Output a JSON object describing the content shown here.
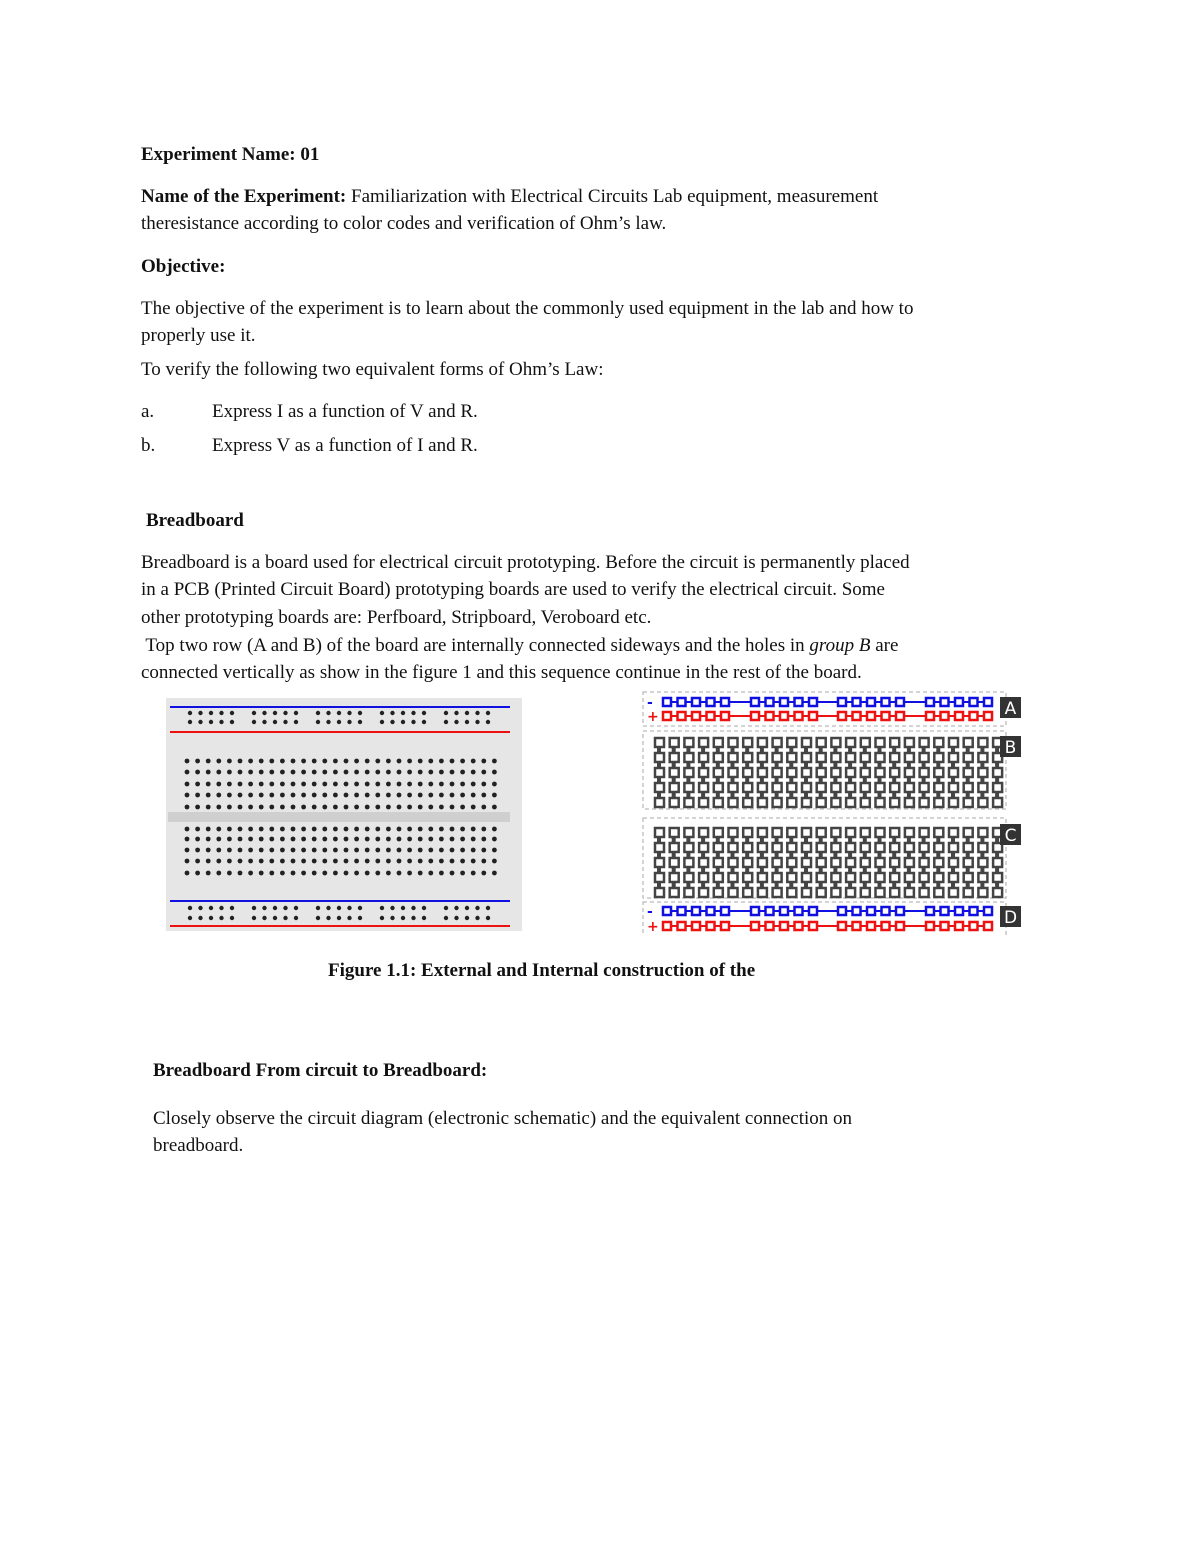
{
  "experiment_name": {
    "label": "Experiment Name:",
    "value": "01"
  },
  "name_of_experiment": {
    "label": "Name of the Experiment:",
    "line1": "Familiarization with Electrical Circuits Lab equipment, measurement",
    "line2": "theresistance according to color codes and verification of Ohm’s law."
  },
  "objective": {
    "heading": "Objective:",
    "line1": "The objective of the experiment is to learn about the commonly used equipment in the lab and how to",
    "line2": "properly use it.",
    "line3": "To verify the following two equivalent forms of Ohm’s Law:",
    "items": [
      {
        "marker": "a.",
        "text": "Express I as a function of V and R."
      },
      {
        "marker": "b.",
        "text": "Express V as a function of I and R."
      }
    ]
  },
  "breadboard": {
    "heading": "Breadboard",
    "p1": [
      "Breadboard is a board used for electrical circuit prototyping. Before the circuit is permanently placed",
      "in a PCB (Printed Circuit Board) prototyping boards are used to verify the electrical circuit. Some",
      "other prototyping boards are: Perfboard, Stripboard, Veroboard etc."
    ],
    "p2_line1_pre": " Top two row (A and B) of the board are internally connected sideways and the holes in ",
    "p2_line1_em": "group B",
    "p2_line1_post": " are",
    "p2_line2": "connected vertically as show in the figure 1 and this sequence continue in the rest of the board."
  },
  "figure": {
    "caption": "Figure 1.1: External and Internal construction of the",
    "section_labels": [
      "A",
      "B",
      "C",
      "D"
    ],
    "rail_signs": [
      "-",
      "+"
    ],
    "colors": {
      "negative": "#1010e0",
      "positive": "#ee1111",
      "strip": "#444444",
      "board": "#e6e6e6"
    }
  },
  "circuit_section": {
    "heading": "Breadboard From circuit to Breadboard:",
    "line1": "Closely observe the circuit diagram (electronic schematic) and the equivalent connection on",
    "line2": "breadboard."
  }
}
